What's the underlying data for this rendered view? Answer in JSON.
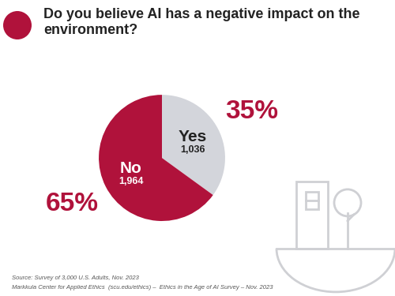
{
  "chart_data": {
    "type": "pie",
    "title": "Do you believe AI has a negative impact on the environment?",
    "categories": [
      "Yes",
      "No"
    ],
    "values": [
      35,
      65
    ],
    "value_labels": [
      "35%",
      "65%"
    ],
    "counts": [
      1036,
      1964
    ],
    "count_labels": [
      "1,036",
      "1,964"
    ],
    "colors": [
      "#d3d5db",
      "#b0123b"
    ],
    "data_labels": true,
    "source": [
      "Source: Survey of 3,000 U.S. Adults, Nov. 2023",
      "Markkula Center for Applied Ethics  (scu.edu/ethics) –  Ethics in the Age of AI Survey – Nov. 2023"
    ]
  }
}
